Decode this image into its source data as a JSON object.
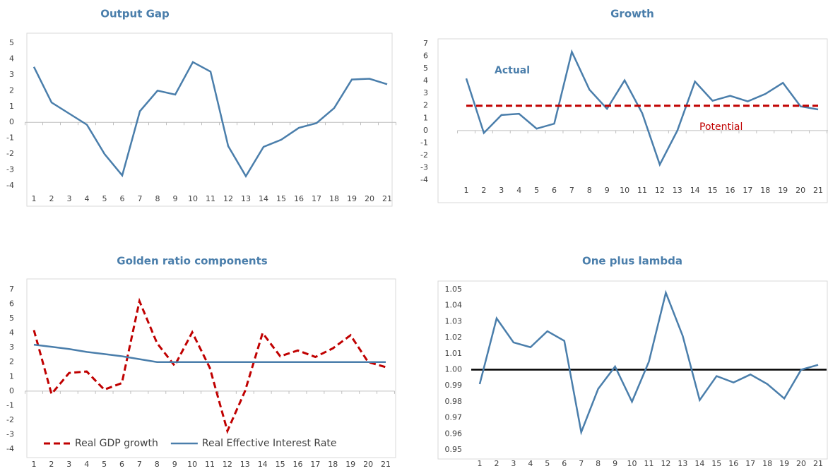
{
  "chart_data": [
    {
      "type": "line",
      "title": "Output Gap",
      "categories": [
        "1",
        "2",
        "3",
        "4",
        "5",
        "6",
        "7",
        "8",
        "9",
        "10",
        "11",
        "12",
        "13",
        "14",
        "15",
        "16",
        "17",
        "18",
        "19",
        "20",
        "21"
      ],
      "values": [
        3.5,
        1.25,
        0.55,
        -0.15,
        -2.0,
        -3.35,
        0.7,
        2.0,
        1.75,
        3.8,
        3.2,
        -1.5,
        -3.4,
        -1.55,
        -1.1,
        -0.35,
        -0.05,
        0.9,
        2.7,
        2.75,
        2.4
      ],
      "color": "#4a7eab",
      "ylim": [
        -4,
        5
      ],
      "yticks": [
        -4,
        -3,
        -2,
        -1,
        0,
        1,
        2,
        3,
        4,
        5
      ]
    },
    {
      "type": "line",
      "title": "Growth",
      "categories": [
        "1",
        "2",
        "3",
        "4",
        "5",
        "6",
        "7",
        "8",
        "9",
        "10",
        "11",
        "12",
        "13",
        "14",
        "15",
        "16",
        "17",
        "18",
        "19",
        "20",
        "21"
      ],
      "series": [
        {
          "name": "Actual",
          "color": "#4a7eab",
          "values": [
            4.2,
            -0.2,
            1.25,
            1.35,
            0.15,
            0.55,
            6.35,
            3.3,
            1.75,
            4.05,
            1.4,
            -2.75,
            0.0,
            3.95,
            2.4,
            2.8,
            2.35,
            2.95,
            3.85,
            1.95,
            1.7
          ]
        },
        {
          "name": "Potential",
          "color": "#c00000",
          "dashed": true,
          "values": [
            2,
            2,
            2,
            2,
            2,
            2,
            2,
            2,
            2,
            2,
            2,
            2,
            2,
            2,
            2,
            2,
            2,
            2,
            2,
            2,
            2
          ]
        }
      ],
      "legend": "inline",
      "ylim": [
        -4,
        7
      ],
      "yticks": [
        -4,
        -3,
        -2,
        -1,
        0,
        1,
        2,
        3,
        4,
        5,
        6,
        7
      ]
    },
    {
      "type": "line",
      "title": "Golden ratio components",
      "categories": [
        "1",
        "2",
        "3",
        "4",
        "5",
        "6",
        "7",
        "8",
        "9",
        "10",
        "11",
        "12",
        "13",
        "14",
        "15",
        "16",
        "17",
        "18",
        "19",
        "20",
        "21"
      ],
      "series": [
        {
          "name": "Real GDP growth",
          "color": "#c00000",
          "dashed": true,
          "values": [
            4.2,
            -0.2,
            1.25,
            1.35,
            0.1,
            0.55,
            6.2,
            3.3,
            1.75,
            4.05,
            1.6,
            -2.75,
            0.0,
            4.0,
            2.4,
            2.8,
            2.35,
            2.95,
            3.85,
            2.0,
            1.65
          ]
        },
        {
          "name": "Real Effective Interest Rate",
          "color": "#4a7eab",
          "values": [
            3.2,
            3.05,
            2.9,
            2.7,
            2.55,
            2.4,
            2.2,
            2.0,
            2.0,
            2.0,
            2.0,
            2.0,
            2.0,
            2.0,
            2.0,
            2.0,
            2.0,
            2.0,
            2.0,
            2.0,
            2.0
          ]
        }
      ],
      "legend": "lower center",
      "ylim": [
        -4,
        7
      ],
      "yticks": [
        -4,
        -3,
        -2,
        -1,
        0,
        1,
        2,
        3,
        4,
        5,
        6,
        7
      ]
    },
    {
      "type": "line",
      "title": "One plus lambda",
      "categories": [
        "1",
        "2",
        "3",
        "4",
        "5",
        "6",
        "7",
        "8",
        "9",
        "10",
        "11",
        "12",
        "13",
        "14",
        "15",
        "16",
        "17",
        "18",
        "19",
        "20",
        "21"
      ],
      "values": [
        0.991,
        1.032,
        1.017,
        1.014,
        1.024,
        1.018,
        0.961,
        0.988,
        1.002,
        0.98,
        1.005,
        1.048,
        1.021,
        0.981,
        0.996,
        0.992,
        0.997,
        0.991,
        0.982,
        1.0,
        1.003
      ],
      "color": "#4a7eab",
      "hline": 1,
      "hline_color": "#000000",
      "ylim": [
        0.95,
        1.05
      ],
      "yticks": [
        0.95,
        0.96,
        0.97,
        0.98,
        0.99,
        {
          "value": 1,
          "label": "1.00"
        },
        1.01,
        1.02,
        1.03,
        1.04,
        1.05
      ]
    }
  ]
}
